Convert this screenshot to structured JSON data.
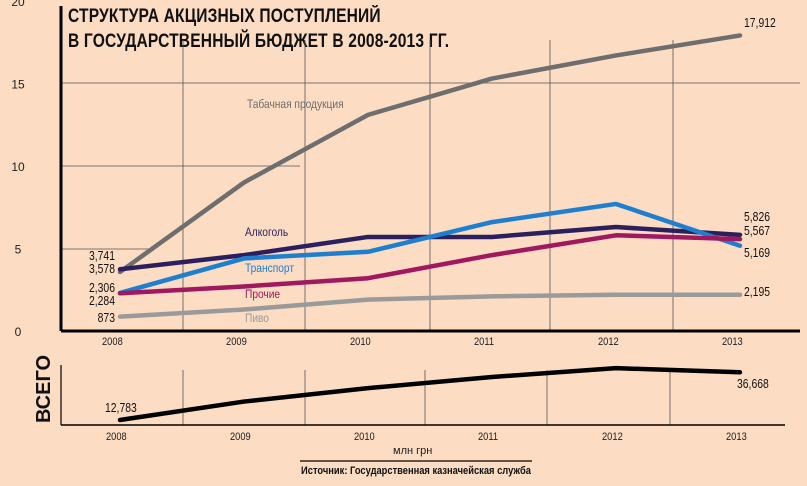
{
  "chart_data": [
    {
      "type": "line",
      "title": "СТРУКТУРА АКЦИЗНЫХ ПОСТУПЛЕНИЙ В ГОСУДАРСТВЕННЫЙ БЮДЖЕТ В 2008-2013 ГГ.",
      "title_lines": [
        "СТРУКТУРА АКЦИЗНЫХ ПОСТУПЛЕНИЙ",
        "В ГОСУДАРСТВЕННЫЙ БЮДЖЕТ В 2008-2013 ГГ."
      ],
      "x": [
        "2008",
        "2009",
        "2010",
        "2011",
        "2012",
        "2013"
      ],
      "ylim": [
        0,
        20
      ],
      "yticks": [
        "0",
        "5",
        "10",
        "15",
        "20"
      ],
      "grid": true,
      "series": [
        {
          "name": "Табачная продукция",
          "color": "#6e6e6e",
          "values": [
            3.578,
            9.0,
            13.1,
            15.3,
            16.7,
            17.912
          ],
          "labels": {
            "start": "3,578",
            "end": "17,912"
          }
        },
        {
          "name": "Алкоголь",
          "color": "#2b1f5e",
          "values": [
            3.741,
            4.6,
            5.7,
            5.7,
            6.3,
            5.826
          ],
          "labels": {
            "start": "3,741",
            "end": "5,826"
          }
        },
        {
          "name": "Транспорт",
          "color": "#1f7fcf",
          "values": [
            2.306,
            4.4,
            4.8,
            6.6,
            7.7,
            5.169
          ],
          "labels": {
            "start": "2,306",
            "end": "5,169"
          }
        },
        {
          "name": "Прочие",
          "color": "#a0185f",
          "values": [
            2.284,
            2.7,
            3.2,
            4.6,
            5.8,
            5.567
          ],
          "labels": {
            "start": "2,284",
            "end": "5,567"
          }
        },
        {
          "name": "Пиво",
          "color": "#9a9a9a",
          "values": [
            0.873,
            1.3,
            1.9,
            2.1,
            2.2,
            2.195
          ],
          "labels": {
            "start": "873",
            "end": "2,195"
          }
        }
      ]
    },
    {
      "type": "line",
      "ylabel": "ВСЕГО",
      "x": [
        "2008",
        "2009",
        "2010",
        "2011",
        "2012",
        "2013"
      ],
      "series": [
        {
          "color": "#000000",
          "values": [
            12.783,
            22.0,
            28.7,
            34.3,
            38.7,
            36.668
          ],
          "labels": {
            "start": "12,783",
            "end": "36,668"
          }
        }
      ],
      "unit": "млн грн",
      "source": "Источник: Государственная казначейская служба"
    }
  ]
}
